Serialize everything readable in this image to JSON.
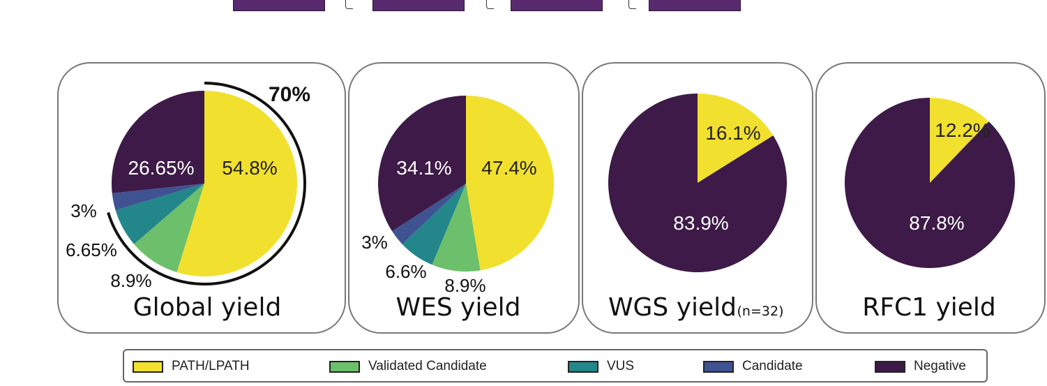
{
  "colors": {
    "path_lpath": "#f2e02e",
    "validated_candidate": "#6cbf6b",
    "vus": "#23868a",
    "candidate": "#3f5392",
    "negative": "#3d1a47",
    "top_box": "#5a2a6e"
  },
  "chart_data": [
    {
      "type": "pie",
      "title": "Global yield",
      "subtitle": "",
      "slices": [
        {
          "name": "PATH/LPATH",
          "value": 54.8,
          "label": "54.8%"
        },
        {
          "name": "Validated Candidate",
          "value": 8.9,
          "label": "8.9%"
        },
        {
          "name": "VUS",
          "value": 6.65,
          "label": "6.65%"
        },
        {
          "name": "Candidate",
          "value": 3,
          "label": "3%"
        },
        {
          "name": "Negative",
          "value": 26.65,
          "label": "26.65%"
        }
      ],
      "annotation": "70%"
    },
    {
      "type": "pie",
      "title": "WES yield",
      "subtitle": "",
      "slices": [
        {
          "name": "PATH/LPATH",
          "value": 47.4,
          "label": "47.4%"
        },
        {
          "name": "Validated Candidate",
          "value": 8.9,
          "label": "8.9%"
        },
        {
          "name": "VUS",
          "value": 6.6,
          "label": "6.6%"
        },
        {
          "name": "Candidate",
          "value": 3,
          "label": "3%"
        },
        {
          "name": "Negative",
          "value": 34.1,
          "label": "34.1%"
        }
      ]
    },
    {
      "type": "pie",
      "title": "WGS yield",
      "subtitle": "(n=32)",
      "slices": [
        {
          "name": "PATH/LPATH",
          "value": 16.1,
          "label": "16.1%"
        },
        {
          "name": "Negative",
          "value": 83.9,
          "label": "83.9%"
        }
      ]
    },
    {
      "type": "pie",
      "title": "RFC1 yield",
      "subtitle": "",
      "slices": [
        {
          "name": "PATH/LPATH",
          "value": 12.2,
          "label": "12.2%"
        },
        {
          "name": "Negative",
          "value": 87.8,
          "label": "87.8%"
        }
      ]
    }
  ],
  "legend": [
    {
      "label": "PATH/LPATH",
      "color": "#f2e02e"
    },
    {
      "label": "Validated Candidate",
      "color": "#6cbf6b"
    },
    {
      "label": "VUS",
      "color": "#23868a"
    },
    {
      "label": "Candidate",
      "color": "#3f5392"
    },
    {
      "label": "Negative",
      "color": "#3d1a47"
    }
  ]
}
